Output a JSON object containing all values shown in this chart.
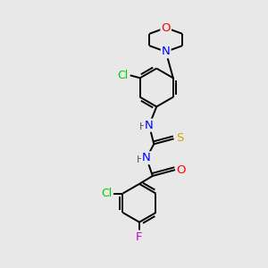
{
  "bg_color": "#e8e8e8",
  "atom_colors": {
    "C": "#000000",
    "N": "#0000ff",
    "O": "#ff0000",
    "S": "#ccaa00",
    "Cl": "#00cc00",
    "F": "#cc00cc",
    "H": "#555555"
  },
  "bond_color": "#000000",
  "bond_width": 1.4,
  "font_size_atom": 9.5
}
